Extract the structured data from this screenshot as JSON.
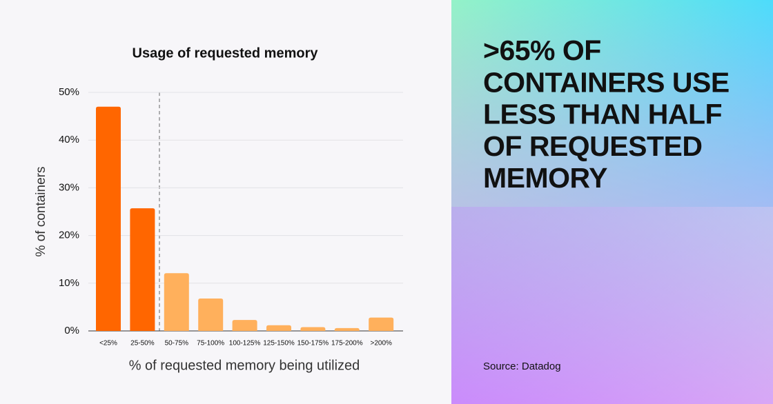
{
  "chart_data": {
    "type": "bar",
    "title": "Usage of requested memory",
    "xlabel": "% of requested memory being utilized",
    "ylabel": "% of containers",
    "categories": [
      "<25%",
      "25-50%",
      "50-75%",
      "75-100%",
      "100-125%",
      "125-150%",
      "150-175%",
      "175-200%",
      ">200%"
    ],
    "values": [
      47,
      25.7,
      12.1,
      6.8,
      2.3,
      1.2,
      0.8,
      0.6,
      2.8
    ],
    "colors": [
      "#ff6600",
      "#ff6600",
      "#ffb05c",
      "#ffb05c",
      "#ffb05c",
      "#ffb05c",
      "#ffb05c",
      "#ffb05c",
      "#ffb05c"
    ],
    "ylim": [
      0,
      50
    ],
    "yticks": [
      {
        "value": 0,
        "label": "0%"
      },
      {
        "value": 10,
        "label": "10%"
      },
      {
        "value": 20,
        "label": "20%"
      },
      {
        "value": 30,
        "label": "30%"
      },
      {
        "value": 40,
        "label": "40%"
      },
      {
        "value": 50,
        "label": "50%"
      }
    ],
    "grid": true
  },
  "headline": [
    ">65% OF",
    "CONTAINERS USE",
    "LESS THAN HALF",
    "OF REQUESTED",
    "MEMORY"
  ],
  "source": "Source: Datadog"
}
